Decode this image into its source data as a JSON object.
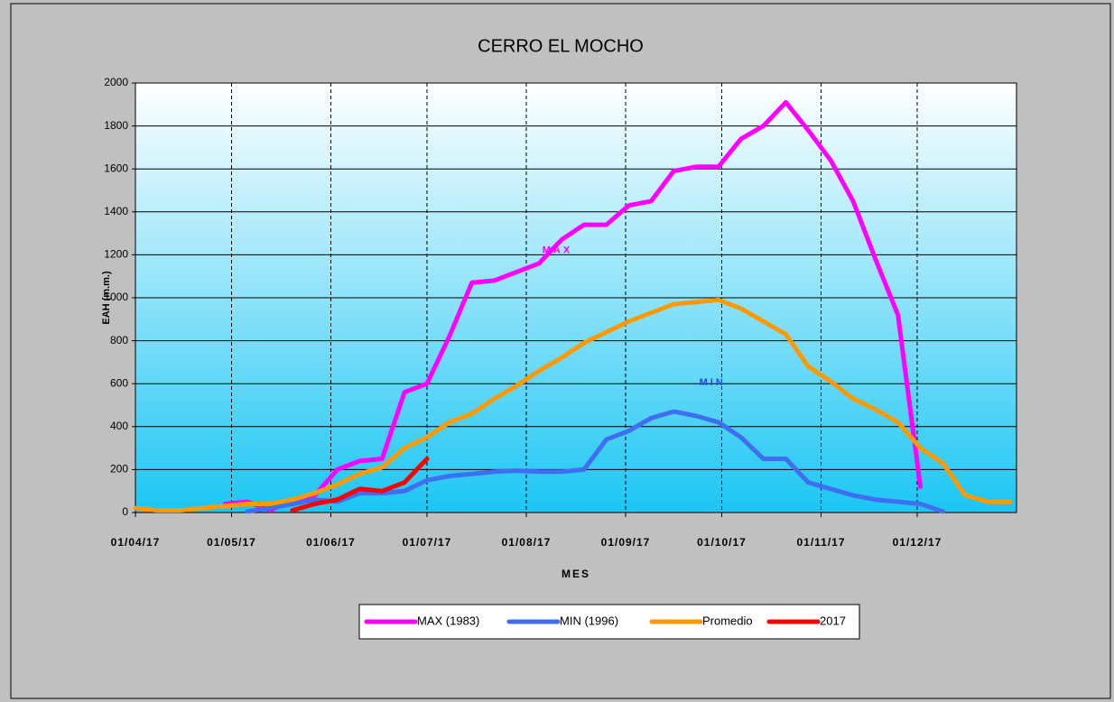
{
  "chart_data": {
    "type": "line",
    "title": "CERRO EL MOCHO",
    "xlabel": "MES",
    "ylabel": "EAH (m.m.)",
    "x": [
      "2017-04-01",
      "2017-04-08",
      "2017-04-15",
      "2017-04-22",
      "2017-04-29",
      "2017-05-06",
      "2017-05-13",
      "2017-05-20",
      "2017-05-27",
      "2017-06-03",
      "2017-06-10",
      "2017-06-17",
      "2017-06-24",
      "2017-07-01",
      "2017-07-08",
      "2017-07-15",
      "2017-07-22",
      "2017-07-29",
      "2017-08-05",
      "2017-08-12",
      "2017-08-19",
      "2017-08-26",
      "2017-09-02",
      "2017-09-09",
      "2017-09-16",
      "2017-09-23",
      "2017-09-30",
      "2017-10-07",
      "2017-10-14",
      "2017-10-21",
      "2017-10-28",
      "2017-11-04",
      "2017-11-11",
      "2017-11-18",
      "2017-11-25",
      "2017-12-02",
      "2017-12-09",
      "2017-12-16",
      "2017-12-23",
      "2017-12-30"
    ],
    "series": [
      {
        "name": "MAX (1983)",
        "color": "#ff00ff",
        "values": [
          null,
          null,
          null,
          null,
          40,
          50,
          10,
          60,
          80,
          200,
          240,
          250,
          560,
          600,
          820,
          1070,
          1080,
          1120,
          1160,
          1270,
          1340,
          1340,
          1430,
          1450,
          1590,
          1610,
          1610,
          1740,
          1800,
          1910,
          1780,
          1640,
          1450,
          1180,
          920,
          120,
          null,
          null,
          null,
          null
        ]
      },
      {
        "name": "MIN (1996)",
        "color": "#3f6ef0",
        "values": [
          null,
          null,
          null,
          null,
          null,
          5,
          20,
          40,
          60,
          50,
          90,
          90,
          100,
          150,
          170,
          180,
          190,
          195,
          190,
          190,
          200,
          340,
          380,
          440,
          470,
          450,
          420,
          350,
          250,
          250,
          140,
          110,
          80,
          60,
          50,
          40,
          5,
          null,
          null,
          null
        ]
      },
      {
        "name": "Promedio",
        "color": "#ff9900",
        "values": [
          20,
          10,
          10,
          20,
          30,
          40,
          40,
          60,
          90,
          130,
          180,
          210,
          300,
          350,
          420,
          460,
          530,
          590,
          660,
          720,
          790,
          840,
          890,
          930,
          970,
          980,
          990,
          950,
          890,
          830,
          680,
          610,
          530,
          480,
          420,
          300,
          230,
          80,
          50,
          50
        ]
      },
      {
        "name": "2017",
        "color": "#ff0000",
        "values": [
          null,
          null,
          null,
          null,
          null,
          null,
          null,
          10,
          40,
          60,
          110,
          100,
          140,
          250,
          null,
          null,
          null,
          null,
          null,
          null,
          null,
          null,
          null,
          null,
          null,
          null,
          null,
          null,
          null,
          null,
          null,
          null,
          null,
          null,
          null,
          null,
          null,
          null,
          null,
          null
        ]
      }
    ],
    "annotations": [
      {
        "text": "MAX",
        "x": "2017-08-06",
        "y": 1220,
        "color": "#ff00ff"
      },
      {
        "text": "MIN",
        "x": "2017-09-24",
        "y": 605,
        "color": "#2050e0"
      }
    ],
    "xlim": [
      "2017-04-01",
      "2018-01-01"
    ],
    "xticks": [
      {
        "value": "2017-04-01",
        "label": "01/04/17"
      },
      {
        "value": "2017-05-01",
        "label": "01/05/17"
      },
      {
        "value": "2017-06-01",
        "label": "01/06/17"
      },
      {
        "value": "2017-07-01",
        "label": "01/07/17"
      },
      {
        "value": "2017-08-01",
        "label": "01/08/17"
      },
      {
        "value": "2017-09-01",
        "label": "01/09/17"
      },
      {
        "value": "2017-10-01",
        "label": "01/10/17"
      },
      {
        "value": "2017-11-01",
        "label": "01/11/17"
      },
      {
        "value": "2017-12-01",
        "label": "01/12/17"
      }
    ],
    "ylim": [
      0,
      2000
    ],
    "yticks": [
      0,
      200,
      400,
      600,
      800,
      1000,
      1200,
      1400,
      1600,
      1800,
      2000
    ],
    "grid": true,
    "legend": "bottom"
  }
}
